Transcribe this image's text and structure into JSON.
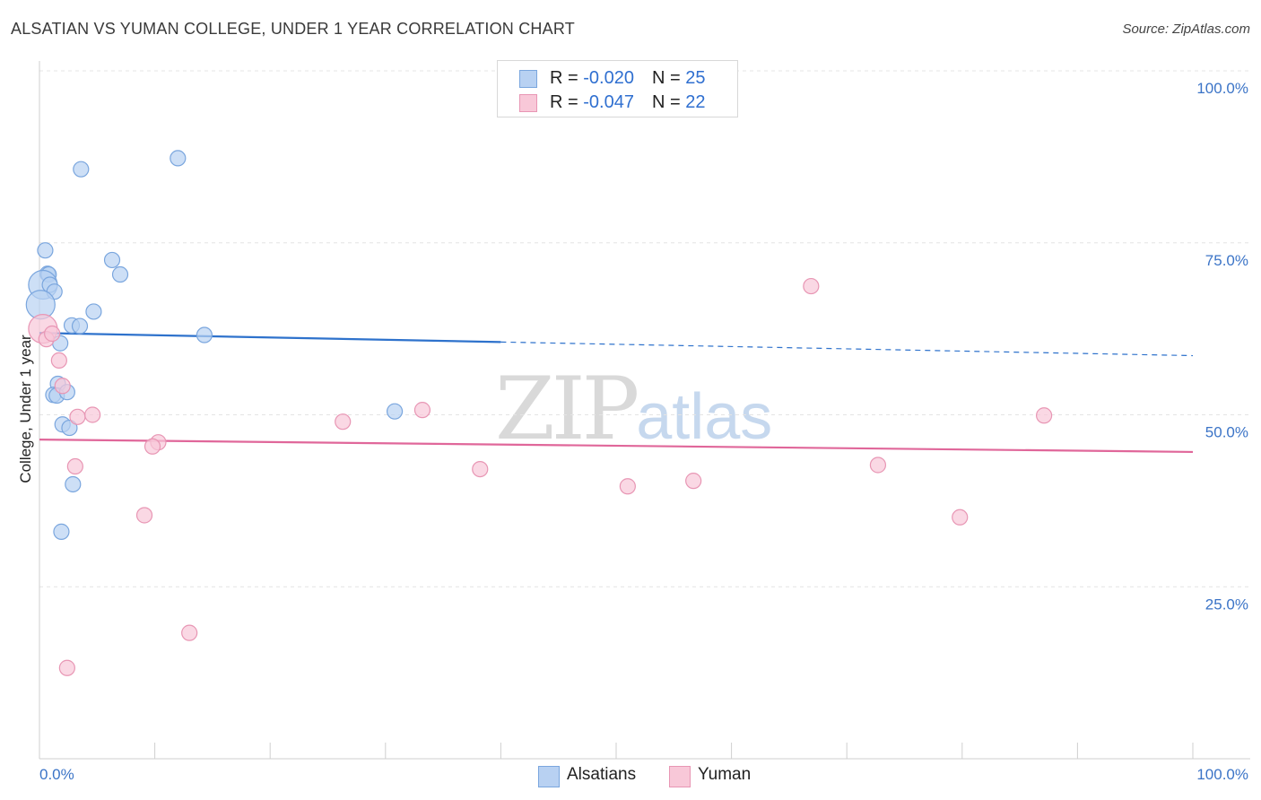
{
  "header": {
    "title": "ALSATIAN VS YUMAN COLLEGE, UNDER 1 YEAR CORRELATION CHART",
    "source": "Source: ZipAtlas.com"
  },
  "legend": {
    "rows": [
      {
        "r_label": "R = ",
        "r_value": "-0.020",
        "n_label": "N = ",
        "n_value": "25"
      },
      {
        "r_label": "R = ",
        "r_value": "-0.047",
        "n_label": "N = ",
        "n_value": "22"
      }
    ],
    "bottom": [
      "Alsatians",
      "Yuman"
    ]
  },
  "watermark": {
    "zip": "ZIP",
    "atlas": "atlas"
  },
  "colors": {
    "alsatians_fill": "#b8d1f2",
    "alsatians_stroke": "#7aa6de",
    "alsatians_line": "#2e72cc",
    "yuman_fill": "#f8c8d8",
    "yuman_stroke": "#e896b4",
    "yuman_line": "#e0679a",
    "axis_text": "#3b74c7",
    "grid": "#e4e4e4"
  },
  "chart_data": {
    "type": "scatter",
    "title": "ALSATIAN VS YUMAN COLLEGE, UNDER 1 YEAR CORRELATION CHART",
    "xlabel": "",
    "ylabel": "College, Under 1 year",
    "xlim": [
      0,
      100
    ],
    "ylim": [
      0,
      100
    ],
    "x_tick_labels": [
      "0.0%",
      "100.0%"
    ],
    "y_ticks": [
      25,
      50,
      75,
      100
    ],
    "y_tick_labels": [
      "25.0%",
      "50.0%",
      "75.0%",
      "100.0%"
    ],
    "grid": true,
    "series": [
      {
        "name": "Alsatians",
        "r": -0.02,
        "n": 25,
        "trend": {
          "x0": 0,
          "y0": 61.9,
          "x1": 100,
          "y1": 58.6,
          "solid_until": 40
        },
        "points": [
          {
            "x": 3.6,
            "y": 85.7
          },
          {
            "x": 12.0,
            "y": 87.3
          },
          {
            "x": 0.5,
            "y": 73.9
          },
          {
            "x": 6.3,
            "y": 72.5
          },
          {
            "x": 0.7,
            "y": 70.5
          },
          {
            "x": 0.8,
            "y": 70.4
          },
          {
            "x": 7.0,
            "y": 70.4
          },
          {
            "x": 0.3,
            "y": 68.9
          },
          {
            "x": 0.9,
            "y": 68.9
          },
          {
            "x": 1.3,
            "y": 67.9
          },
          {
            "x": 0.1,
            "y": 66.0
          },
          {
            "x": 4.7,
            "y": 65.0
          },
          {
            "x": 2.8,
            "y": 63.0
          },
          {
            "x": 3.5,
            "y": 62.9
          },
          {
            "x": 14.3,
            "y": 61.6
          },
          {
            "x": 1.8,
            "y": 60.4
          },
          {
            "x": 1.6,
            "y": 54.5
          },
          {
            "x": 1.2,
            "y": 52.9
          },
          {
            "x": 1.5,
            "y": 52.8
          },
          {
            "x": 2.4,
            "y": 53.3
          },
          {
            "x": 30.8,
            "y": 50.5
          },
          {
            "x": 2.0,
            "y": 48.6
          },
          {
            "x": 2.6,
            "y": 48.1
          },
          {
            "x": 2.9,
            "y": 39.9
          },
          {
            "x": 1.9,
            "y": 33.0
          }
        ]
      },
      {
        "name": "Yuman",
        "r": -0.047,
        "n": 22,
        "trend": {
          "x0": 0,
          "y0": 46.4,
          "x1": 100,
          "y1": 44.6,
          "solid_until": 100
        },
        "points": [
          {
            "x": 0.3,
            "y": 62.5
          },
          {
            "x": 0.6,
            "y": 61.0
          },
          {
            "x": 1.1,
            "y": 61.8
          },
          {
            "x": 1.7,
            "y": 57.9
          },
          {
            "x": 2.0,
            "y": 54.2
          },
          {
            "x": 3.3,
            "y": 49.7
          },
          {
            "x": 4.6,
            "y": 50.0
          },
          {
            "x": 26.3,
            "y": 49.0
          },
          {
            "x": 33.2,
            "y": 50.7
          },
          {
            "x": 10.3,
            "y": 46.0
          },
          {
            "x": 9.8,
            "y": 45.4
          },
          {
            "x": 3.1,
            "y": 42.5
          },
          {
            "x": 38.2,
            "y": 42.1
          },
          {
            "x": 66.9,
            "y": 68.7
          },
          {
            "x": 87.1,
            "y": 49.9
          },
          {
            "x": 72.7,
            "y": 42.7
          },
          {
            "x": 56.7,
            "y": 40.4
          },
          {
            "x": 51.0,
            "y": 39.6
          },
          {
            "x": 9.1,
            "y": 35.4
          },
          {
            "x": 79.8,
            "y": 35.1
          },
          {
            "x": 13.0,
            "y": 18.3
          },
          {
            "x": 2.4,
            "y": 13.2
          }
        ]
      }
    ]
  }
}
